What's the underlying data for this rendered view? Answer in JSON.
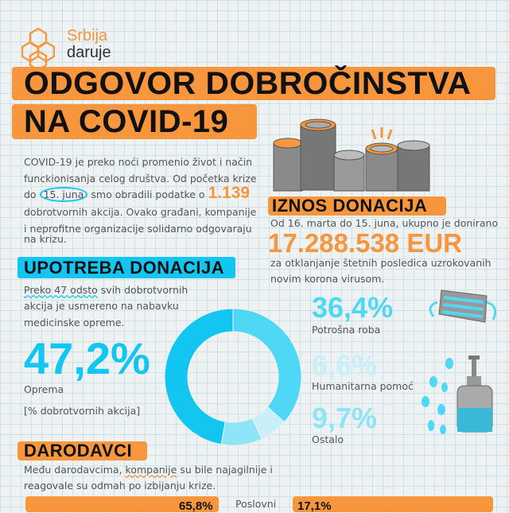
{
  "logo": {
    "line1": "Srbija",
    "line2": "daruje"
  },
  "title": {
    "line1": "ODGOVOR DOBROČINSTVA",
    "line2": "NA COVID-19"
  },
  "intro": {
    "l1": "COVID-19 je preko noći promenio život i način",
    "l2": "funckionisanja celog društva. Od početka krize",
    "l3a": "do ",
    "l3b": "15. juna",
    "l3c": " smo obradili podatke o ",
    "count": "1.139",
    "l4": "dobrotvornih akcija. Ovako građani, kompanije",
    "l5": "i neprofitne organizacije solidarno odgovaraju",
    "l6": "na krizu."
  },
  "donations": {
    "heading": "IZNOS DONACIJA",
    "lead": "Od 16. marta do 15. juna, ukupno je donirano",
    "amount": "17.288.538 EUR",
    "l1": "za otklanjanje štetnih posledica uzrokovanih",
    "l2": "novim korona virusom."
  },
  "usage": {
    "heading": "UPOTREBA DONACIJA",
    "l1a": "Preko 47 odsto",
    "l1b": " svih dobrotvornih",
    "l2": "akcija je usmereno na nabavku",
    "l3": "medicinske opreme.",
    "note": "[% dobrotvornih akcija]"
  },
  "chart_data": {
    "type": "pie",
    "title": "UPOTREBA DONACIJA",
    "unit": "% dobrotvornih akcija",
    "slices": [
      {
        "label": "Potrošna roba",
        "value": 36.4,
        "display": "36,4%",
        "color": "#4fd8f6"
      },
      {
        "label": "Humanitarna pomoć",
        "value": 6.6,
        "display": "6,6%",
        "color": "#c9f0f9"
      },
      {
        "label": "Ostalo",
        "value": 9.7,
        "display": "9,7%",
        "color": "#8ee5f8"
      },
      {
        "label": "Oprema",
        "value": 47.2,
        "display": "47,2%",
        "color": "#12c6f1"
      }
    ]
  },
  "donors": {
    "heading": "DARODAVCI",
    "l1a": "Među darodavcima, ",
    "l1b": "kompanije",
    "l1c": " su bile najagilnije i",
    "l2": "reagovale su odmah po izbijanju krize.",
    "bar1": "65,8%",
    "mid_label": "Poslovni",
    "bar2": "17,1%"
  },
  "colors": {
    "orange": "#f7963c",
    "cyan": "#12c6f1"
  }
}
